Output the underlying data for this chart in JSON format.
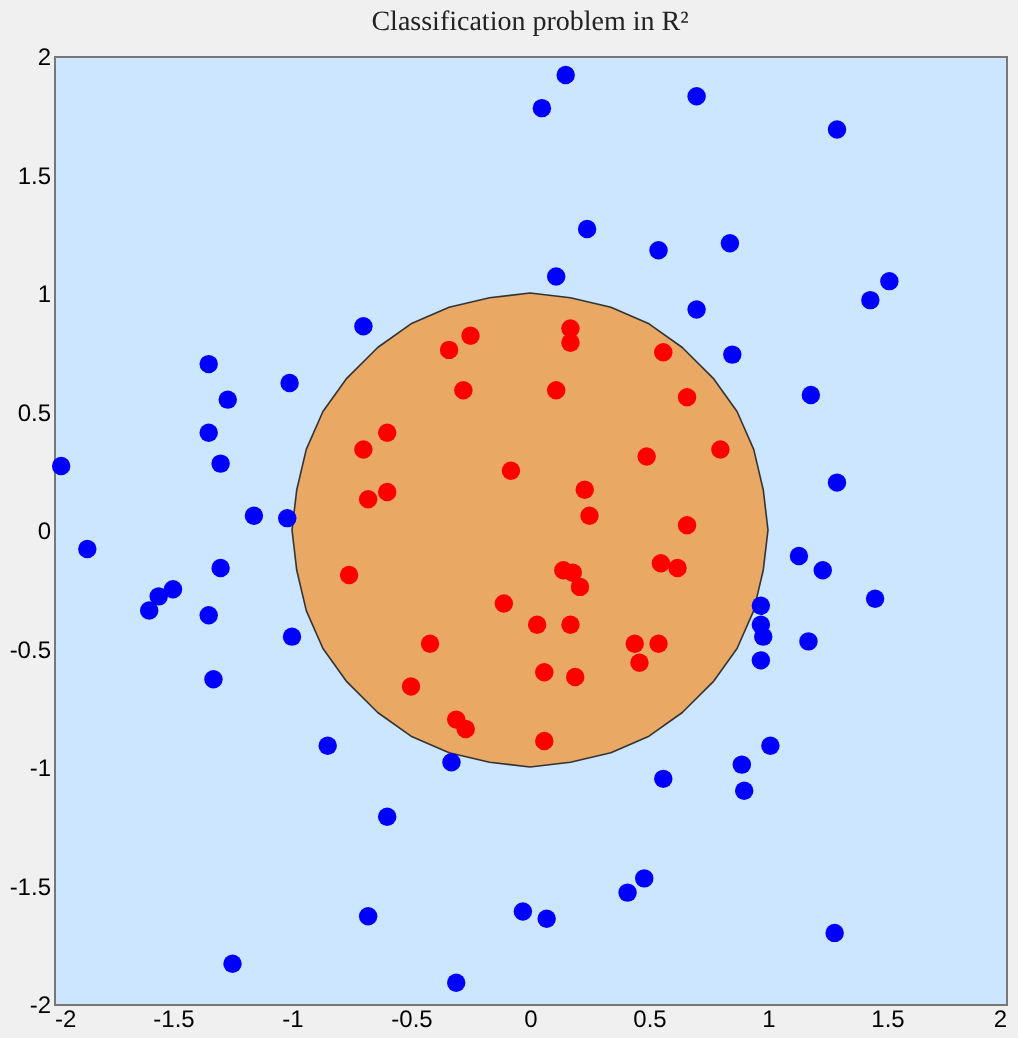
{
  "chart_data": {
    "type": "scatter",
    "title": "Classification problem in R²",
    "xlim": [
      -2,
      2
    ],
    "ylim": [
      -2,
      2
    ],
    "xticks": [
      -2,
      -1.5,
      -1,
      -0.5,
      0,
      0.5,
      1,
      1.5,
      2
    ],
    "yticks": [
      -2,
      -1.5,
      -1,
      -0.5,
      0,
      0.5,
      1,
      1.5,
      2
    ],
    "grid": false,
    "marker": "circle",
    "series": [
      {
        "type": "area",
        "marker": "none",
        "color": "#e9a864",
        "x": [
          1,
          0.98,
          0.94,
          0.87,
          0.77,
          0.64,
          0.5,
          0.34,
          0.17,
          0,
          -0.17,
          -0.34,
          -0.5,
          -0.64,
          -0.77,
          -0.87,
          -0.94,
          -0.98,
          -1,
          -0.98,
          -0.94,
          -0.87,
          -0.77,
          -0.64,
          -0.5,
          -0.34,
          -0.17,
          0,
          0.17,
          0.34,
          0.5,
          0.64,
          0.77,
          0.87,
          0.94,
          0.98,
          1
        ],
        "values": [
          0,
          0.17,
          0.34,
          0.5,
          0.64,
          0.77,
          0.87,
          0.94,
          0.98,
          1,
          0.98,
          0.94,
          0.87,
          0.77,
          0.64,
          0.5,
          0.34,
          0.17,
          0,
          -0.17,
          -0.34,
          -0.5,
          -0.64,
          -0.77,
          -0.87,
          -0.94,
          -0.98,
          -1,
          -0.98,
          -0.94,
          -0.87,
          -0.77,
          -0.64,
          -0.5,
          -0.34,
          -0.17,
          0
        ]
      },
      {
        "color": "#0000ff",
        "x": [
          -1.97,
          -1.86,
          -1.6,
          -1.56,
          -1.5,
          -1.35,
          -1.35,
          -1.27,
          -1.3,
          -1.01,
          -0.7,
          -1.16,
          -1.02,
          -1.3,
          -1.35,
          -1.0,
          -1.33,
          -0.85,
          -0.33,
          -0.6,
          -0.68,
          -1.25,
          -0.31,
          -0.03,
          0.07,
          0.41,
          0.48,
          1.28,
          0.56,
          0.89,
          0.9,
          1.01,
          0.97,
          0.97,
          0.98,
          0.97,
          1.13,
          1.23,
          1.45,
          1.17,
          0.15,
          0.05,
          0.7,
          1.29,
          0.24,
          0.54,
          0.84,
          0.11,
          1.51,
          1.43,
          0.7,
          0.85,
          1.18,
          1.29
        ],
        "values": [
          0.27,
          -0.08,
          -0.34,
          -0.28,
          -0.25,
          0.7,
          0.41,
          0.55,
          0.28,
          0.62,
          0.86,
          0.06,
          0.05,
          -0.16,
          -0.36,
          -0.45,
          -0.63,
          -0.91,
          -0.98,
          -1.21,
          -1.63,
          -1.83,
          -1.91,
          -1.61,
          -1.64,
          -1.53,
          -1.47,
          -1.7,
          -1.05,
          -0.99,
          -1.1,
          -0.91,
          -0.32,
          -0.4,
          -0.45,
          -0.55,
          -0.11,
          -0.17,
          -0.29,
          -0.47,
          1.92,
          1.78,
          1.83,
          1.69,
          1.27,
          1.18,
          1.21,
          1.07,
          1.05,
          0.97,
          0.93,
          0.74,
          0.57,
          0.2
        ]
      },
      {
        "color": "#ff0000",
        "x": [
          -0.34,
          -0.25,
          -0.28,
          -0.6,
          -0.7,
          -0.08,
          -0.68,
          -0.6,
          -0.76,
          -0.11,
          -0.42,
          -0.5,
          -0.31,
          -0.27,
          0.17,
          0.17,
          0.11,
          0.56,
          0.66,
          0.49,
          0.8,
          0.23,
          0.25,
          0.66,
          0.14,
          0.18,
          0.21,
          0.03,
          0.17,
          0.55,
          0.62,
          0.44,
          0.54,
          0.46,
          0.06,
          0.19,
          0.06
        ],
        "values": [
          0.76,
          0.82,
          0.59,
          0.41,
          0.34,
          0.25,
          0.13,
          0.16,
          -0.19,
          -0.31,
          -0.48,
          -0.66,
          -0.8,
          -0.84,
          0.85,
          0.79,
          0.59,
          0.75,
          0.56,
          0.31,
          0.34,
          0.17,
          0.06,
          0.02,
          -0.17,
          -0.18,
          -0.24,
          -0.4,
          -0.4,
          -0.14,
          -0.16,
          -0.48,
          -0.48,
          -0.56,
          -0.6,
          -0.62,
          -0.89
        ]
      }
    ]
  }
}
